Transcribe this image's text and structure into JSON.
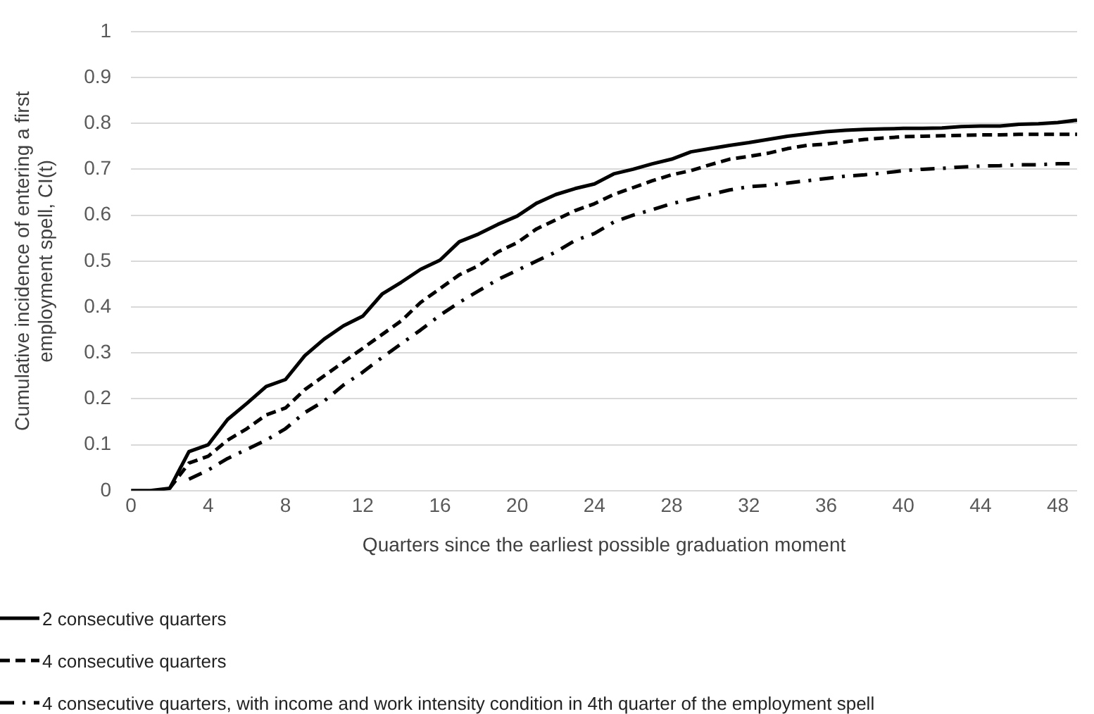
{
  "chart_data": {
    "type": "line",
    "xlabel": "Quarters since the earliest possible graduation moment",
    "ylabel": "Cumulative incidence of entering a first employment spell, CI(t)",
    "x": [
      0,
      1,
      2,
      3,
      4,
      5,
      6,
      7,
      8,
      9,
      10,
      11,
      12,
      13,
      14,
      15,
      16,
      17,
      18,
      19,
      20,
      21,
      22,
      23,
      24,
      25,
      26,
      27,
      28,
      29,
      30,
      31,
      32,
      33,
      34,
      35,
      36,
      37,
      38,
      39,
      40,
      41,
      42,
      43,
      44,
      45,
      46,
      47,
      48,
      49
    ],
    "xlim": [
      0,
      49
    ],
    "xticks": [
      0,
      4,
      8,
      12,
      16,
      20,
      24,
      28,
      32,
      36,
      40,
      44,
      48
    ],
    "ylim": [
      0,
      1
    ],
    "yticks": [
      0,
      0.1,
      0.2,
      0.3,
      0.4,
      0.5,
      0.6,
      0.7,
      0.8,
      0.9,
      1
    ],
    "grid": "y",
    "legend": "bottom",
    "marker": "none",
    "series": [
      {
        "name": "2 consecutive quarters",
        "color": "#000000",
        "line_style": "solid",
        "values": [
          0,
          0,
          0.005,
          0.085,
          0.1,
          0.155,
          0.19,
          0.227,
          0.242,
          0.294,
          0.33,
          0.359,
          0.38,
          0.428,
          0.454,
          0.482,
          0.502,
          0.542,
          0.559,
          0.58,
          0.598,
          0.626,
          0.645,
          0.658,
          0.668,
          0.69,
          0.7,
          0.712,
          0.722,
          0.738,
          0.745,
          0.752,
          0.758,
          0.765,
          0.772,
          0.777,
          0.782,
          0.785,
          0.787,
          0.788,
          0.789,
          0.789,
          0.79,
          0.793,
          0.794,
          0.794,
          0.798,
          0.799,
          0.802,
          0.807
        ]
      },
      {
        "name": "4 consecutive quarters",
        "color": "#000000",
        "line_style": "dashed",
        "values": [
          null,
          null,
          0.005,
          0.06,
          0.075,
          0.11,
          0.135,
          0.165,
          0.18,
          0.22,
          0.25,
          0.28,
          0.31,
          0.34,
          0.37,
          0.41,
          0.44,
          0.47,
          0.49,
          0.52,
          0.54,
          0.57,
          0.59,
          0.61,
          0.625,
          0.645,
          0.66,
          0.675,
          0.688,
          0.697,
          0.71,
          0.722,
          0.728,
          0.735,
          0.745,
          0.752,
          0.755,
          0.76,
          0.765,
          0.768,
          0.771,
          0.772,
          0.773,
          0.774,
          0.775,
          0.775,
          0.776,
          0.776,
          0.776,
          0.776
        ]
      },
      {
        "name": "4 consecutive quarters, with income and work intensity condition in 4th quarter of the employment spell",
        "color": "#000000",
        "line_style": "dashdot",
        "values": [
          null,
          null,
          null,
          0.025,
          0.045,
          0.07,
          0.09,
          0.11,
          0.135,
          0.17,
          0.195,
          0.23,
          0.258,
          0.29,
          0.32,
          0.35,
          0.382,
          0.41,
          0.435,
          0.46,
          0.48,
          0.5,
          0.52,
          0.545,
          0.56,
          0.585,
          0.6,
          0.612,
          0.625,
          0.635,
          0.645,
          0.655,
          0.662,
          0.665,
          0.67,
          0.675,
          0.68,
          0.685,
          0.688,
          0.692,
          0.697,
          0.7,
          0.702,
          0.705,
          0.707,
          0.708,
          0.71,
          0.71,
          0.712,
          0.712
        ]
      }
    ]
  }
}
